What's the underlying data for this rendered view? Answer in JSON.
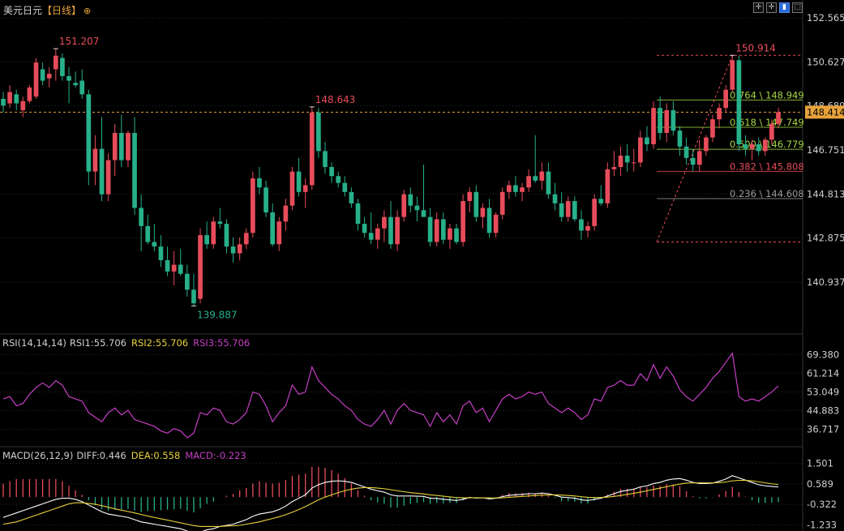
{
  "header": {
    "symbol": "美元日元",
    "interval": "【日线】",
    "options_icon": "circle-plus-icon",
    "toolbar": [
      "crosshair-icon",
      "crosshair-icon",
      "chart-mode-icon",
      "maximize-icon"
    ]
  },
  "colors": {
    "up": "#e74c5b",
    "down": "#27b08a",
    "bg": "#000000",
    "grid": "#2a2a2a",
    "last": "#e8a33c"
  },
  "chart_data": [
    {
      "type": "candlestick",
      "title": "美元日元【日线】",
      "ylim": [
        138.9,
        152.565
      ],
      "y_ticks": [
        "152.565",
        "150.627",
        "148.689",
        "146.751",
        "144.813",
        "142.875",
        "140.937"
      ],
      "last_price": "148.414",
      "annotations": {
        "high": "151.207",
        "swing_high": "148.643",
        "low": "139.887",
        "recent_high": "150.914"
      },
      "fibonacci": [
        {
          "label": "0.764 \\ 148.949",
          "value": 148.949,
          "color": "#a6d843"
        },
        {
          "label": "0.618 \\ 147.749",
          "value": 147.749,
          "color": "#a6d843"
        },
        {
          "label": "0.500 \\ 146.779",
          "value": 146.779,
          "color": "#a6d843"
        },
        {
          "label": "0.382 \\ 145.808",
          "value": 145.808,
          "color": "#e74c5b"
        },
        {
          "label": "0.236 \\ 144.608",
          "value": 144.608,
          "color": "#9a9a9a"
        }
      ],
      "fib_range": [
        142.7,
        150.914
      ],
      "candles": [
        [
          149.0,
          149.3,
          148.4,
          148.7
        ],
        [
          148.8,
          149.6,
          148.6,
          149.3
        ],
        [
          149.2,
          149.4,
          148.5,
          148.8
        ],
        [
          148.5,
          149.1,
          148.2,
          148.9
        ],
        [
          148.9,
          149.6,
          148.8,
          149.5
        ],
        [
          149.1,
          150.8,
          149.0,
          150.6
        ],
        [
          150.3,
          150.6,
          149.6,
          149.8
        ],
        [
          149.9,
          150.4,
          149.5,
          150.1
        ],
        [
          150.3,
          151.207,
          149.8,
          150.9
        ],
        [
          150.8,
          151.0,
          149.8,
          150.0
        ],
        [
          150.0,
          150.4,
          148.8,
          149.8
        ],
        [
          149.7,
          150.2,
          149.5,
          149.6
        ],
        [
          149.8,
          150.3,
          149.0,
          149.2
        ],
        [
          149.2,
          149.4,
          145.2,
          145.8
        ],
        [
          145.8,
          147.4,
          145.2,
          146.8
        ],
        [
          146.8,
          148.2,
          144.5,
          144.8
        ],
        [
          144.8,
          146.6,
          144.5,
          146.3
        ],
        [
          146.3,
          147.9,
          145.6,
          147.5
        ],
        [
          147.5,
          148.3,
          146.0,
          146.3
        ],
        [
          146.3,
          147.6,
          146.0,
          147.5
        ],
        [
          147.5,
          148.2,
          143.9,
          144.2
        ],
        [
          144.2,
          144.8,
          142.3,
          143.4
        ],
        [
          143.4,
          143.9,
          142.6,
          142.7
        ],
        [
          142.7,
          143.5,
          142.3,
          142.5
        ],
        [
          142.5,
          143.0,
          141.6,
          141.9
        ],
        [
          141.9,
          142.5,
          141.2,
          141.4
        ],
        [
          141.4,
          142.3,
          140.8,
          141.7
        ],
        [
          141.7,
          142.4,
          141.2,
          141.3
        ],
        [
          141.3,
          141.7,
          140.3,
          140.6
        ],
        [
          140.6,
          141.3,
          139.887,
          140.0
        ],
        [
          140.2,
          143.3,
          140.0,
          143.0
        ],
        [
          143.0,
          143.6,
          142.4,
          142.6
        ],
        [
          142.6,
          143.8,
          142.4,
          143.6
        ],
        [
          143.6,
          144.2,
          143.3,
          143.5
        ],
        [
          143.5,
          143.7,
          142.2,
          142.5
        ],
        [
          142.5,
          142.9,
          141.8,
          142.2
        ],
        [
          142.2,
          142.9,
          141.9,
          142.6
        ],
        [
          142.6,
          143.3,
          142.4,
          143.1
        ],
        [
          143.1,
          145.8,
          142.9,
          145.5
        ],
        [
          145.5,
          146.0,
          144.8,
          145.1
        ],
        [
          145.1,
          145.4,
          143.8,
          144.0
        ],
        [
          144.0,
          144.4,
          142.5,
          142.6
        ],
        [
          142.6,
          143.8,
          142.3,
          143.6
        ],
        [
          143.6,
          144.6,
          143.2,
          144.3
        ],
        [
          144.3,
          146.0,
          144.1,
          145.8
        ],
        [
          145.8,
          146.4,
          144.7,
          144.9
        ],
        [
          144.9,
          145.5,
          144.2,
          145.2
        ],
        [
          145.2,
          148.643,
          145.0,
          148.4
        ],
        [
          148.4,
          148.6,
          146.4,
          146.7
        ],
        [
          146.7,
          147.1,
          145.7,
          146.0
        ],
        [
          146.0,
          146.2,
          145.3,
          145.6
        ],
        [
          145.6,
          145.8,
          145.1,
          145.3
        ],
        [
          145.3,
          145.6,
          144.7,
          144.9
        ],
        [
          144.9,
          145.1,
          144.2,
          144.4
        ],
        [
          144.4,
          144.6,
          143.2,
          143.5
        ],
        [
          143.5,
          143.8,
          142.9,
          143.1
        ],
        [
          143.1,
          144.0,
          142.6,
          142.8
        ],
        [
          142.8,
          143.5,
          142.4,
          143.3
        ],
        [
          143.3,
          144.1,
          142.7,
          143.8
        ],
        [
          143.8,
          144.5,
          142.4,
          142.6
        ],
        [
          142.6,
          144.1,
          142.3,
          143.8
        ],
        [
          143.8,
          145.0,
          143.6,
          144.8
        ],
        [
          144.8,
          145.1,
          144.0,
          144.3
        ],
        [
          144.3,
          144.7,
          143.6,
          144.1
        ],
        [
          144.1,
          146.1,
          143.9,
          143.8
        ],
        [
          143.8,
          144.2,
          142.5,
          142.7
        ],
        [
          142.7,
          144.0,
          142.5,
          143.7
        ],
        [
          143.7,
          144.0,
          142.6,
          142.8
        ],
        [
          142.8,
          143.5,
          142.4,
          143.3
        ],
        [
          143.3,
          143.5,
          142.6,
          142.7
        ],
        [
          142.7,
          144.8,
          142.5,
          144.5
        ],
        [
          144.5,
          145.1,
          144.0,
          144.9
        ],
        [
          144.9,
          145.2,
          143.6,
          143.8
        ],
        [
          143.8,
          144.4,
          143.3,
          144.2
        ],
        [
          144.2,
          144.6,
          142.9,
          143.1
        ],
        [
          143.1,
          144.0,
          142.9,
          143.9
        ],
        [
          143.9,
          145.1,
          143.7,
          144.9
        ],
        [
          144.9,
          145.4,
          144.6,
          145.2
        ],
        [
          145.2,
          145.6,
          144.7,
          144.9
        ],
        [
          144.9,
          145.3,
          144.5,
          145.1
        ],
        [
          145.1,
          145.9,
          144.9,
          145.6
        ],
        [
          145.6,
          147.4,
          145.3,
          145.4
        ],
        [
          145.4,
          146.2,
          145.0,
          145.8
        ],
        [
          145.8,
          146.2,
          144.6,
          144.8
        ],
        [
          144.8,
          145.3,
          144.1,
          144.4
        ],
        [
          144.4,
          144.9,
          143.6,
          143.8
        ],
        [
          143.8,
          144.7,
          143.6,
          144.5
        ],
        [
          144.5,
          144.7,
          143.6,
          143.7
        ],
        [
          143.7,
          144.1,
          142.8,
          143.2
        ],
        [
          143.2,
          143.6,
          142.9,
          143.4
        ],
        [
          143.4,
          144.8,
          143.2,
          144.6
        ],
        [
          144.6,
          145.2,
          144.3,
          144.4
        ],
        [
          144.4,
          146.2,
          144.2,
          145.9
        ],
        [
          145.9,
          146.7,
          145.6,
          146.0
        ],
        [
          146.0,
          146.9,
          145.6,
          146.5
        ],
        [
          146.5,
          147.0,
          145.8,
          146.2
        ],
        [
          146.2,
          146.8,
          145.8,
          146.2
        ],
        [
          146.2,
          147.6,
          146.0,
          147.3
        ],
        [
          147.3,
          147.8,
          146.7,
          147.0
        ],
        [
          147.0,
          148.9,
          146.8,
          148.6
        ],
        [
          148.6,
          149.1,
          147.2,
          147.5
        ],
        [
          147.5,
          148.8,
          147.1,
          148.5
        ],
        [
          148.5,
          148.9,
          147.4,
          147.6
        ],
        [
          147.6,
          147.8,
          146.5,
          146.9
        ],
        [
          146.9,
          147.3,
          146.1,
          146.4
        ],
        [
          146.4,
          146.8,
          145.8,
          146.1
        ],
        [
          146.1,
          147.2,
          145.8,
          146.7
        ],
        [
          146.7,
          147.4,
          146.5,
          147.3
        ],
        [
          147.3,
          148.3,
          147.1,
          148.1
        ],
        [
          148.1,
          148.8,
          147.7,
          148.6
        ],
        [
          148.6,
          149.6,
          148.4,
          149.4
        ],
        [
          149.4,
          150.914,
          149.3,
          150.7
        ],
        [
          150.7,
          150.9,
          146.7,
          147.0
        ],
        [
          147.0,
          147.4,
          146.5,
          146.8
        ],
        [
          146.8,
          147.2,
          146.3,
          147.0
        ],
        [
          147.0,
          147.3,
          146.5,
          146.7
        ],
        [
          146.7,
          147.3,
          146.5,
          147.2
        ],
        [
          147.2,
          148.1,
          147.0,
          147.9
        ],
        [
          147.9,
          148.6,
          147.7,
          148.414
        ]
      ]
    },
    {
      "type": "line",
      "title": "RSI(14,14,14)",
      "legend": [
        "RSI1:55.706",
        "RSI2:55.706",
        "RSI3:55.706"
      ],
      "y_ticks": [
        "69.380",
        "61.214",
        "53.049",
        "44.883",
        "36.717"
      ],
      "ylim": [
        33,
        72
      ],
      "series": [
        {
          "name": "RSI1",
          "color": "#c43fc4",
          "values": [
            50,
            51,
            47,
            48,
            52,
            55,
            57,
            55,
            58,
            56,
            51,
            50,
            49,
            44,
            42,
            40,
            44,
            46,
            43,
            45,
            41,
            40,
            39,
            38,
            36,
            35,
            37,
            36,
            33,
            35,
            44,
            43,
            46,
            45,
            40,
            39,
            41,
            44,
            53,
            52,
            47,
            40,
            44,
            47,
            56,
            52,
            53,
            64,
            58,
            55,
            52,
            50,
            47,
            45,
            41,
            39,
            38,
            41,
            45,
            39,
            45,
            48,
            45,
            44,
            43,
            38,
            44,
            40,
            43,
            39,
            47,
            49,
            44,
            46,
            40,
            45,
            50,
            52,
            50,
            51,
            53,
            52,
            53,
            48,
            46,
            44,
            46,
            44,
            41,
            43,
            50,
            49,
            55,
            56,
            58,
            56,
            56,
            61,
            58,
            65,
            59,
            64,
            60,
            54,
            51,
            49,
            52,
            55,
            59,
            62,
            66,
            70,
            51,
            49,
            50,
            49,
            51,
            53,
            55.706
          ]
        }
      ]
    },
    {
      "type": "line",
      "title": "MACD(26,12,9)",
      "legend": [
        "DIFF:0.446",
        "DEA:0.558",
        "MACD:-0.223"
      ],
      "y_ticks": [
        "1.501",
        "0.589",
        "-0.322",
        "-1.233"
      ],
      "ylim": [
        -1.25,
        1.55
      ],
      "series": [
        {
          "name": "DIFF",
          "color": "#ffffff",
          "values": [
            -0.9,
            -0.8,
            -0.7,
            -0.6,
            -0.5,
            -0.4,
            -0.3,
            -0.2,
            -0.1,
            -0.05,
            -0.05,
            -0.1,
            -0.2,
            -0.35,
            -0.5,
            -0.65,
            -0.75,
            -0.8,
            -0.85,
            -0.9,
            -1.0,
            -1.1,
            -1.15,
            -1.2,
            -1.25,
            -1.3,
            -1.35,
            -1.4,
            -1.5,
            -1.6,
            -1.55,
            -1.45,
            -1.4,
            -1.3,
            -1.25,
            -1.2,
            -1.1,
            -1.0,
            -0.85,
            -0.75,
            -0.7,
            -0.65,
            -0.55,
            -0.4,
            -0.2,
            -0.05,
            0.1,
            0.4,
            0.55,
            0.65,
            0.7,
            0.72,
            0.7,
            0.65,
            0.55,
            0.45,
            0.35,
            0.28,
            0.22,
            0.1,
            0.05,
            0.05,
            0.05,
            0.04,
            0.03,
            -0.05,
            -0.06,
            -0.1,
            -0.12,
            -0.15,
            -0.1,
            -0.02,
            -0.04,
            -0.03,
            -0.08,
            -0.05,
            0.02,
            0.08,
            0.1,
            0.12,
            0.15,
            0.15,
            0.18,
            0.15,
            0.08,
            0.0,
            -0.02,
            -0.05,
            -0.12,
            -0.15,
            -0.1,
            -0.05,
            0.05,
            0.15,
            0.25,
            0.3,
            0.35,
            0.45,
            0.5,
            0.6,
            0.65,
            0.75,
            0.8,
            0.82,
            0.75,
            0.65,
            0.6,
            0.6,
            0.62,
            0.7,
            0.8,
            0.95,
            0.85,
            0.75,
            0.65,
            0.55,
            0.5,
            0.47,
            0.446
          ]
        },
        {
          "name": "DEA",
          "color": "#e8d23c",
          "values": [
            -1.2,
            -1.15,
            -1.1,
            -1.0,
            -0.9,
            -0.8,
            -0.7,
            -0.6,
            -0.5,
            -0.4,
            -0.3,
            -0.25,
            -0.25,
            -0.28,
            -0.32,
            -0.38,
            -0.45,
            -0.52,
            -0.58,
            -0.64,
            -0.7,
            -0.77,
            -0.84,
            -0.9,
            -0.96,
            -1.02,
            -1.08,
            -1.14,
            -1.2,
            -1.26,
            -1.3,
            -1.3,
            -1.3,
            -1.3,
            -1.28,
            -1.27,
            -1.25,
            -1.2,
            -1.15,
            -1.1,
            -1.02,
            -0.95,
            -0.87,
            -0.78,
            -0.67,
            -0.55,
            -0.42,
            -0.27,
            -0.12,
            0.0,
            0.1,
            0.2,
            0.28,
            0.35,
            0.4,
            0.42,
            0.42,
            0.4,
            0.37,
            0.33,
            0.28,
            0.24,
            0.2,
            0.17,
            0.14,
            0.1,
            0.07,
            0.04,
            0.01,
            -0.02,
            -0.03,
            -0.03,
            -0.03,
            -0.03,
            -0.04,
            -0.04,
            -0.03,
            -0.01,
            0.01,
            0.03,
            0.05,
            0.07,
            0.09,
            0.1,
            0.1,
            0.09,
            0.07,
            0.05,
            0.02,
            -0.01,
            -0.02,
            -0.02,
            0.0,
            0.03,
            0.07,
            0.12,
            0.17,
            0.22,
            0.28,
            0.34,
            0.4,
            0.46,
            0.52,
            0.58,
            0.62,
            0.63,
            0.63,
            0.63,
            0.63,
            0.64,
            0.67,
            0.72,
            0.74,
            0.74,
            0.72,
            0.68,
            0.63,
            0.59,
            0.558
          ]
        }
      ]
    }
  ]
}
